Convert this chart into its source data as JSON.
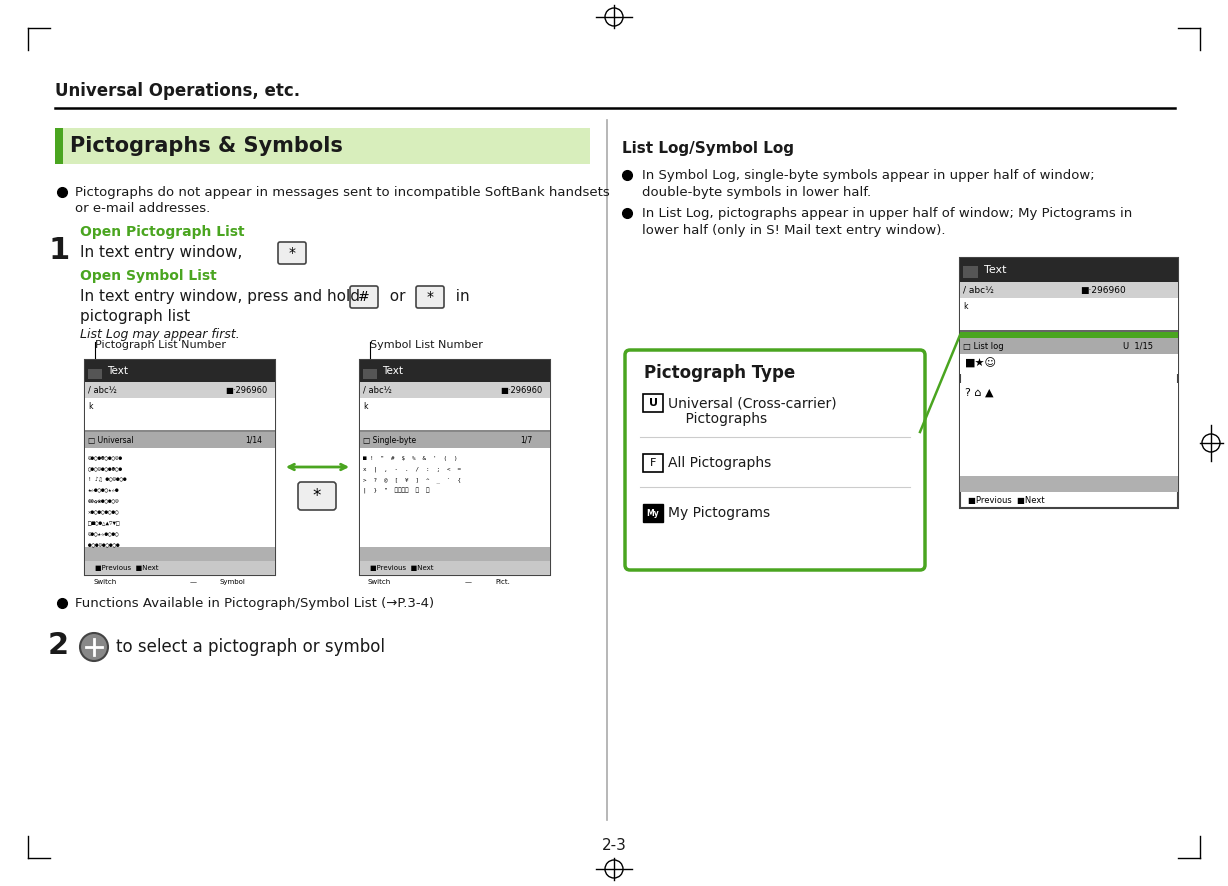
{
  "page_title": "Universal Operations, etc.",
  "section_title": "Pictographs & Symbols",
  "light_green_bg": "#d8eebc",
  "green_color": "#4aa520",
  "dark_color": "#1a1a1a",
  "gray_color": "#888888",
  "right_section_title": "List Log/Symbol Log",
  "right_bullet_1a": "In Symbol Log, single-byte symbols appear in upper half of window;",
  "right_bullet_1b": "double-byte symbols in lower half.",
  "right_bullet_2a": "In List Log, pictographs appear in upper half of window; My Pictograms in",
  "right_bullet_2b": "lower half (only in S! Mail text entry window).",
  "picto_type_title": "Pictograph Type",
  "picto_type_u1": "Universal (Cross-carrier)",
  "picto_type_u2": "    Pictographs",
  "picto_type_f": "All Pictographs",
  "picto_type_my": "My Pictograms",
  "page_number": "2-3",
  "open_pict_label": "Open Pictograph List",
  "open_sym_label": "Open Symbol List",
  "pict_list_label": "Pictograph List Number",
  "sym_list_label": "Symbol List Number",
  "bullet_func": "Functions Available in Pictograph/Symbol List (→P.3-4)",
  "step2_text": "to select a pictograph or symbol"
}
